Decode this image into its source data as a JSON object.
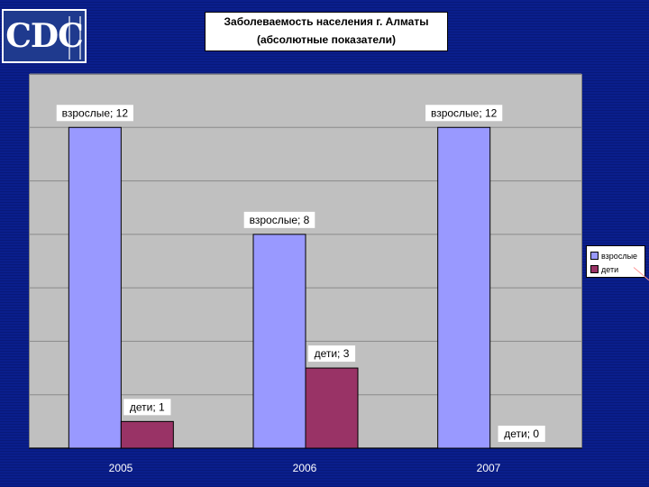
{
  "logo": {
    "text": "CDC"
  },
  "chart_data": {
    "type": "bar",
    "title_line1": "Заболеваемость населения г. Алматы",
    "title_line2": "(абсолютные показатели)",
    "categories": [
      "2005",
      "2006",
      "2007"
    ],
    "series": [
      {
        "name": "взрослые",
        "color": "#9999ff",
        "values": [
          12,
          8,
          12
        ],
        "labels": [
          "взрослые; 12",
          "взрослые; 8",
          "взрослые; 12"
        ]
      },
      {
        "name": "дети",
        "color": "#993366",
        "values": [
          1,
          3,
          0
        ],
        "labels": [
          "дети; 1",
          "дети; 3",
          "дети; 0"
        ]
      }
    ],
    "ylim": [
      0,
      14
    ],
    "grid": true,
    "legend_position": "right"
  }
}
